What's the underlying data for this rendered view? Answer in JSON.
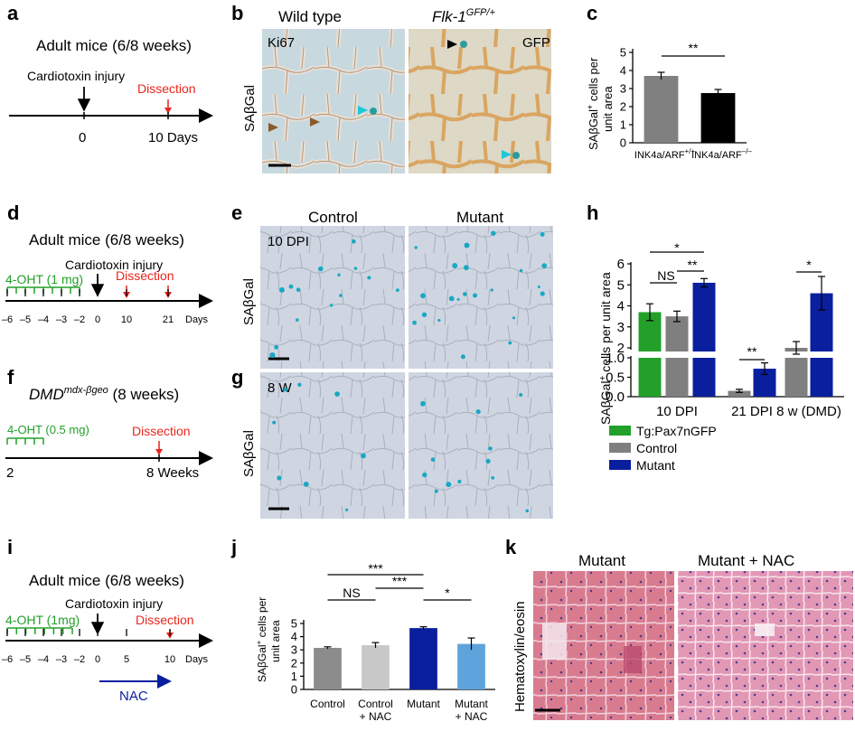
{
  "panels": {
    "a": {
      "label": "a",
      "title": "Adult mice (6/8 weeks)",
      "injury": "Cardiotoxin injury",
      "dissection": "Dissection",
      "tick0": "0",
      "tick1": "10 Days"
    },
    "b": {
      "label": "b",
      "col1": "Wild type",
      "col2_main": "Flk-1",
      "col2_sup": "GFP/+",
      "tag1": "Ki67",
      "tag2": "GFP",
      "ylabel": "SAβGal"
    },
    "c": {
      "label": "c",
      "ylabel1": "SAβGal",
      "ylabel1_sup": "+",
      "ylabel1_rest": " cells per",
      "ylabel2": "unit area",
      "sig": "**"
    },
    "d": {
      "label": "d",
      "title": "Adult mice (6/8 weeks)",
      "injury": "Cardiotoxin injury",
      "drug": "4-OHT (1 mg)",
      "dissection": "Dissection",
      "ticks": [
        "–6",
        "–5",
        "–4",
        "–3",
        "–2",
        "0",
        "10",
        "21"
      ],
      "unit": "Days"
    },
    "e": {
      "label": "e",
      "col1": "Control",
      "col2": "Mutant",
      "tag": "10 DPI",
      "ylabel": "SAβGal"
    },
    "f": {
      "label": "f",
      "title_main": "DMD",
      "title_sup": "mdx-βgeo",
      "title_rest": " (8 weeks)",
      "drug": "4-OHT (0.5 mg)",
      "dissection": "Dissection",
      "tick0": "2",
      "tick1": "8 Weeks"
    },
    "g": {
      "label": "g",
      "tag": "8 W",
      "ylabel": "SAβGal"
    },
    "h": {
      "label": "h",
      "ylabel_a": "SAβGal",
      "ylabel_sup": "+",
      "ylabel_b": " cells per unit area",
      "sig_top": "*",
      "sig_ns": "NS",
      "sig_pair": "**",
      "sig_21": "**",
      "sig_8w": "*"
    },
    "i": {
      "label": "i",
      "title": "Adult mice (6/8 weeks)",
      "injury": "Cardiotoxin injury",
      "drug": "4-OHT (1mg)",
      "dissection": "Dissection",
      "ticks": [
        "–6",
        "–5",
        "–4",
        "–3",
        "–2",
        "0",
        "5",
        "10"
      ],
      "unit": "Days",
      "nac": "NAC"
    },
    "j": {
      "label": "j",
      "ylabel1": "SAβGal",
      "ylabel1_sup": "+",
      "ylabel1_rest": " cells per",
      "ylabel2": "unit area",
      "sig_top": "***",
      "sig_ns": "NS",
      "sig_mid": "***",
      "sig_right": "*"
    },
    "k": {
      "label": "k",
      "col1": "Mutant",
      "col2": "Mutant + NAC",
      "ylabel": "Hematoxylin/eosin"
    }
  },
  "colors": {
    "green": "#22a02a",
    "red": "#e8261e",
    "grey": "#7f7f7f",
    "lightgrey": "#c8c8c8",
    "navy": "#0a1f9e",
    "lightblue": "#5fa3dd",
    "cyan": "#1bc8d8",
    "brown": "#8b5a2b"
  },
  "chart_data": [
    {
      "id": "c",
      "type": "bar",
      "categories": [
        "INK4a/ARF+/+",
        "INK4a/ARF–/–"
      ],
      "category_sups": [
        "+/+",
        "–/–"
      ],
      "category_main": "INK4a/ARF",
      "values": [
        3.7,
        2.75
      ],
      "errors": [
        0.2,
        0.2
      ],
      "colors": [
        "#808080",
        "#000000"
      ],
      "ylim": [
        0,
        5
      ],
      "yticks": [
        "0",
        "1",
        "2",
        "3",
        "4",
        "5"
      ],
      "annotation": "**"
    },
    {
      "id": "h",
      "type": "bar",
      "broken_axis": true,
      "groups": [
        "10 DPI",
        "21 DPI",
        "8 w (DMD)"
      ],
      "series": [
        {
          "name": "Tg:Pax7nGFP",
          "color": "#22a02a",
          "values": [
            3.7,
            null,
            null
          ],
          "errors": [
            0.4,
            null,
            null
          ]
        },
        {
          "name": "Control",
          "color": "#7f7f7f",
          "values": [
            3.5,
            0.15,
            2.0
          ],
          "errors": [
            0.25,
            0.04,
            0.3
          ]
        },
        {
          "name": "Mutant",
          "color": "#0a1f9e",
          "values": [
            5.1,
            0.72,
            4.6
          ],
          "errors": [
            0.2,
            0.15,
            0.8
          ]
        }
      ],
      "ylim_lower": [
        0,
        1
      ],
      "ylim_upper": [
        1,
        6
      ],
      "yticks_lower": [
        "0.0",
        "0.5",
        "1.0"
      ],
      "yticks_upper": [
        "2",
        "3",
        "4",
        "5",
        "6"
      ]
    },
    {
      "id": "j",
      "type": "bar",
      "categories": [
        "Control",
        "Control + NAC",
        "Mutant",
        "Mutant + NAC"
      ],
      "category_lines": [
        [
          "Control"
        ],
        [
          "Control",
          "+ NAC"
        ],
        [
          "Mutant"
        ],
        [
          "Mutant",
          "+ NAC"
        ]
      ],
      "values": [
        3.15,
        3.35,
        4.65,
        3.45
      ],
      "errors": [
        0.08,
        0.2,
        0.1,
        0.45
      ],
      "colors": [
        "#8c8c8c",
        "#c8c8c8",
        "#0a1f9e",
        "#5fa3dd"
      ],
      "ylim": [
        0,
        5
      ],
      "yticks": [
        "0",
        "1",
        "2",
        "3",
        "4",
        "5"
      ]
    }
  ]
}
